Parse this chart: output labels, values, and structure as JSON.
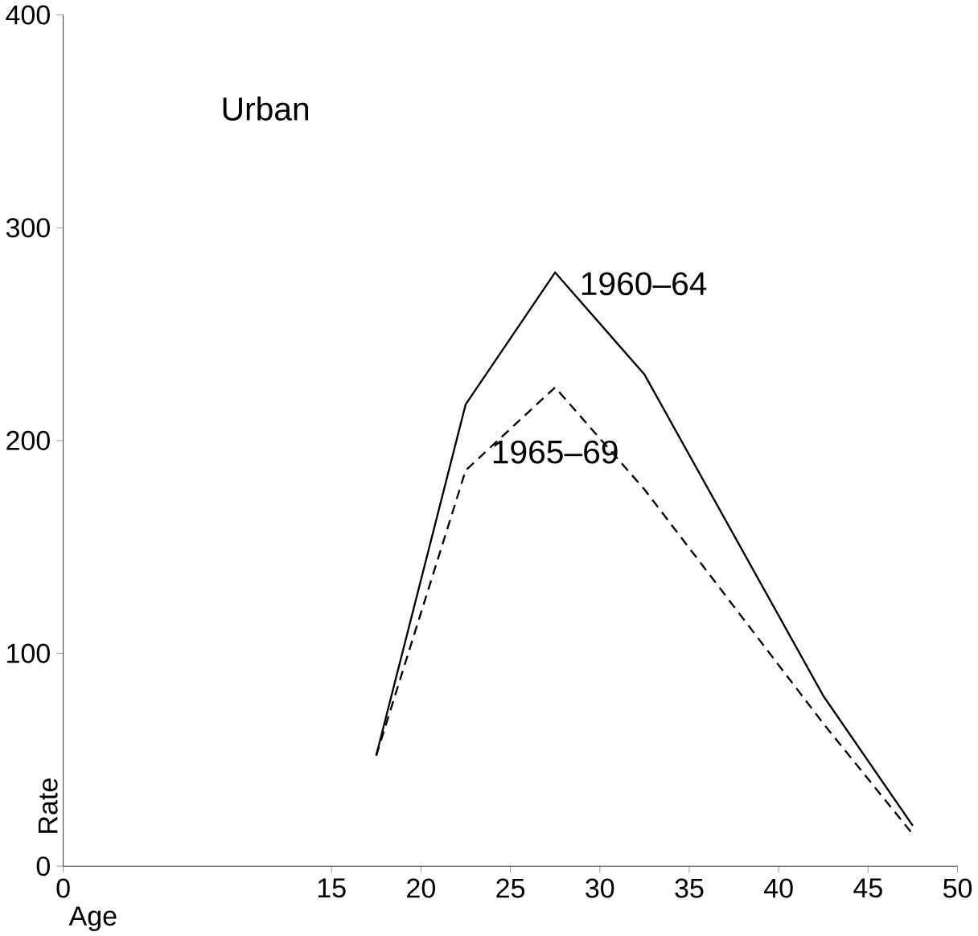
{
  "chart_data": {
    "type": "line",
    "title": "Urban",
    "xlabel": "Age",
    "ylabel": "Rate",
    "x": [
      17.5,
      22.5,
      27.5,
      32.5,
      42.5,
      47.5
    ],
    "series": [
      {
        "name": "1960–64",
        "color": "#000000",
        "line_style": "solid",
        "values": [
          52,
          217,
          279,
          231,
          80,
          19
        ]
      },
      {
        "name": "1965–69",
        "color": "#000000",
        "line_style": "dashed",
        "values": [
          52,
          186,
          225,
          177,
          67,
          15
        ]
      }
    ],
    "xlim": [
      0,
      50
    ],
    "xticks": [
      0,
      15,
      20,
      25,
      30,
      35,
      40,
      45,
      50
    ],
    "ylim": [
      0,
      400
    ],
    "yticks": [
      0,
      100,
      200,
      300,
      400
    ],
    "grid": false,
    "legend": false
  }
}
